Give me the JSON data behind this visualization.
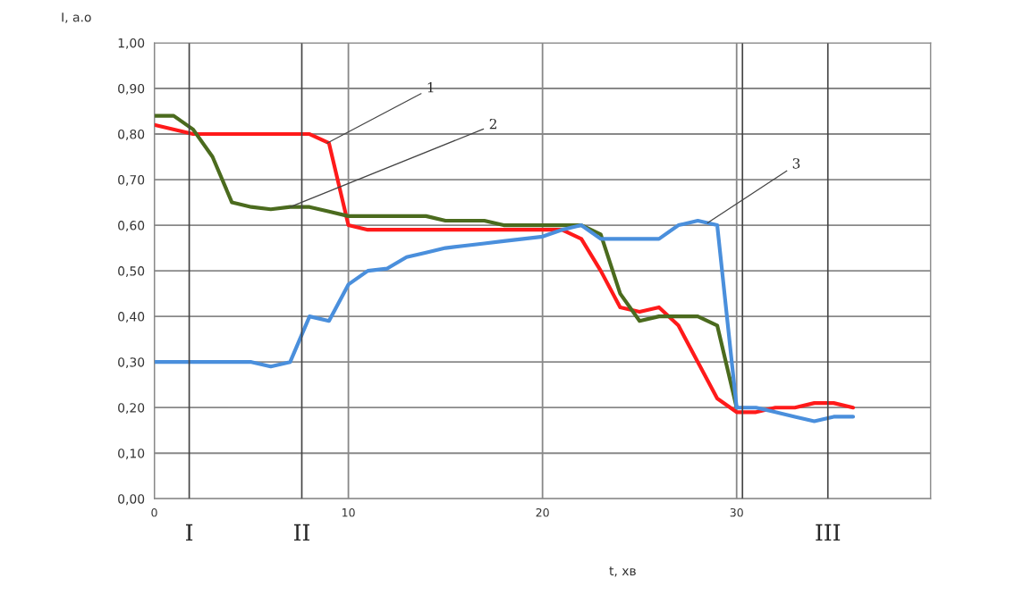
{
  "chart_data": {
    "type": "line",
    "xlabel": "t, хв",
    "ylabel": "I, a.o",
    "xlim": [
      0,
      40
    ],
    "ylim": [
      0,
      1
    ],
    "xticks": [
      0,
      10,
      20,
      30,
      {
        "value": 40,
        "label": null
      }
    ],
    "yticks": [
      {
        "value": 0,
        "label": "0,00"
      },
      {
        "value": 0.1,
        "label": "0,10"
      },
      {
        "value": 0.2,
        "label": "0,20"
      },
      {
        "value": 0.3,
        "label": "0,30"
      },
      {
        "value": 0.4,
        "label": "0,40"
      },
      {
        "value": 0.5,
        "label": "0,50"
      },
      {
        "value": 0.6,
        "label": "0,60"
      },
      {
        "value": 0.7,
        "label": "0,70"
      },
      {
        "value": 0.8,
        "label": "0,80"
      },
      {
        "value": 0.9,
        "label": "0,90"
      },
      {
        "value": 1.0,
        "label": "1,00"
      }
    ],
    "grid": true,
    "marker": "none",
    "line_style": "solid",
    "series": [
      {
        "color": "#ff1a1a",
        "x": [
          0,
          2,
          3,
          4,
          5,
          6,
          7,
          8,
          9,
          10,
          11,
          12,
          13,
          14,
          15,
          16,
          17,
          18,
          19,
          20,
          21,
          22,
          23,
          24,
          25,
          26,
          27,
          28,
          29,
          30,
          31,
          32,
          33,
          34,
          35,
          36
        ],
        "values": [
          0.82,
          0.8,
          0.8,
          0.8,
          0.8,
          0.8,
          0.8,
          0.8,
          0.78,
          0.6,
          0.59,
          0.59,
          0.59,
          0.59,
          0.59,
          0.59,
          0.59,
          0.59,
          0.59,
          0.59,
          0.59,
          0.57,
          0.5,
          0.42,
          0.41,
          0.42,
          0.38,
          0.3,
          0.22,
          0.19,
          0.19,
          0.2,
          0.2,
          0.21,
          0.21,
          0.2
        ]
      },
      {
        "color": "#4b6b1e",
        "x": [
          0,
          1,
          2,
          3,
          4,
          5,
          6,
          7,
          8,
          9,
          10,
          11,
          12,
          13,
          14,
          15,
          16,
          17,
          18,
          19,
          20,
          21,
          22,
          23,
          24,
          25,
          26,
          27,
          28,
          29,
          30
        ],
        "values": [
          0.84,
          0.84,
          0.81,
          0.75,
          0.65,
          0.64,
          0.635,
          0.64,
          0.64,
          0.63,
          0.62,
          0.62,
          0.62,
          0.62,
          0.62,
          0.61,
          0.61,
          0.61,
          0.6,
          0.6,
          0.6,
          0.6,
          0.6,
          0.58,
          0.45,
          0.39,
          0.4,
          0.4,
          0.4,
          0.38,
          0.2
        ]
      },
      {
        "color": "#4a8fdc",
        "x": [
          0,
          1,
          2,
          3,
          4,
          5,
          6,
          7,
          8,
          9,
          10,
          11,
          12,
          13,
          14,
          15,
          16,
          17,
          18,
          19,
          20,
          21,
          22,
          23,
          24,
          25,
          26,
          27,
          28,
          29,
          30,
          31,
          32,
          33,
          34,
          35,
          36
        ],
        "values": [
          0.3,
          0.3,
          0.3,
          0.3,
          0.3,
          0.3,
          0.29,
          0.3,
          0.4,
          0.39,
          0.47,
          0.5,
          0.505,
          0.53,
          0.54,
          0.55,
          0.555,
          0.56,
          0.565,
          0.57,
          0.575,
          0.59,
          0.6,
          0.57,
          0.57,
          0.57,
          0.57,
          0.6,
          0.61,
          0.6,
          0.2,
          0.2,
          0.19,
          0.18,
          0.17,
          0.18,
          0.18
        ]
      }
    ],
    "annotations": [
      {
        "text": "1",
        "x": 8.9,
        "y": 0.78
      },
      {
        "text": "2",
        "x": 7,
        "y": 0.64
      },
      {
        "text": "3",
        "x": 28.5,
        "y": 0.605
      }
    ],
    "ref_lines": [
      {
        "axis": "x",
        "value": 1.8,
        "label": "I"
      },
      {
        "axis": "x",
        "value": 7.6,
        "label": "II"
      },
      {
        "axis": "x",
        "value": 30.3,
        "label": null
      },
      {
        "axis": "x",
        "value": 34.7,
        "label": "III"
      }
    ]
  }
}
